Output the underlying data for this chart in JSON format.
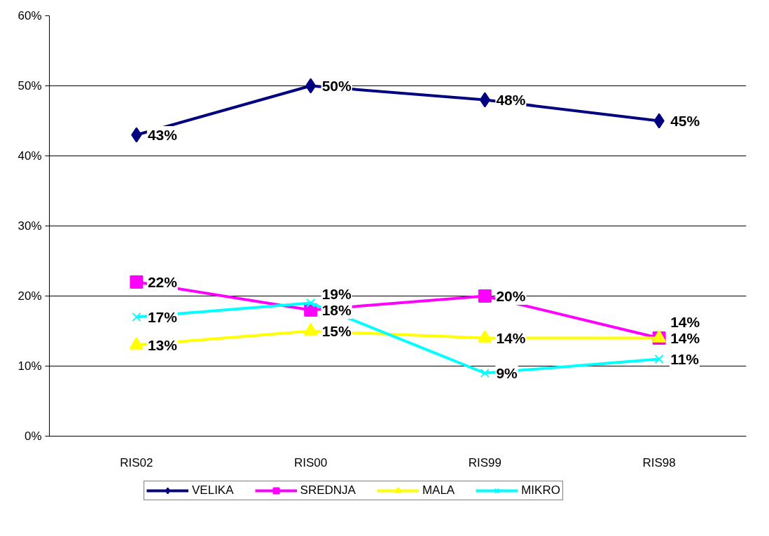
{
  "chart_data": {
    "type": "line",
    "categories": [
      "RIS02",
      "RIS00",
      "RIS99",
      "RIS98"
    ],
    "series": [
      {
        "name": "VELIKA",
        "color": "#000080",
        "marker": "diamond",
        "values": [
          43,
          50,
          48,
          45
        ],
        "value_labels": [
          "43%",
          "50%",
          "48%",
          "45%"
        ]
      },
      {
        "name": "SREDNJA",
        "color": "#ff00ff",
        "marker": "square",
        "values": [
          22,
          18,
          20,
          14
        ],
        "value_labels": [
          "22%",
          "18%",
          "20%",
          "14%"
        ]
      },
      {
        "name": "MALA",
        "color": "#ffff00",
        "marker": "triangle",
        "values": [
          13,
          15,
          14,
          14
        ],
        "value_labels": [
          "13%",
          "15%",
          "14%",
          "14%"
        ]
      },
      {
        "name": "MIKRO",
        "color": "#00ffff",
        "marker": "cross",
        "values": [
          17,
          19,
          9,
          11
        ],
        "value_labels": [
          "17%",
          "19%",
          "9%",
          "11%"
        ]
      }
    ],
    "ylim": [
      0,
      60
    ],
    "yticks": [
      {
        "value": 0,
        "label": "0%"
      },
      {
        "value": 10,
        "label": "10%"
      },
      {
        "value": 20,
        "label": "20%"
      },
      {
        "value": 30,
        "label": "30%"
      },
      {
        "value": 40,
        "label": "40%"
      },
      {
        "value": 50,
        "label": "50%"
      },
      {
        "value": 60,
        "label": "60%"
      }
    ],
    "grid": "y",
    "legend": "bottom",
    "line_style": "solid"
  }
}
